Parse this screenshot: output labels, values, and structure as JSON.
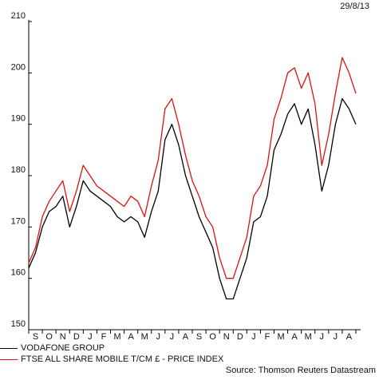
{
  "date_label": "29/8/13",
  "source": "Source: Thomson Reuters Datastream",
  "chart_data": {
    "type": "line",
    "ylim": [
      150,
      210
    ],
    "yticks": [
      150,
      160,
      170,
      180,
      190,
      200,
      210
    ],
    "month_labels": [
      "S",
      "O",
      "N",
      "D",
      "J",
      "F",
      "M",
      "A",
      "M",
      "J",
      "J",
      "A",
      "S",
      "O",
      "N",
      "D",
      "J",
      "F",
      "M",
      "A",
      "M",
      "J",
      "J",
      "A"
    ],
    "series": [
      {
        "name": "VODAFONE GROUP",
        "color": "#000000",
        "x": [
          0,
          0.5,
          1,
          1.5,
          2,
          2.5,
          3,
          3.5,
          4,
          4.5,
          5,
          5.5,
          6,
          6.5,
          7,
          7.5,
          8,
          8.5,
          9,
          9.5,
          10,
          10.5,
          11,
          11.5,
          12,
          12.5,
          13,
          13.5,
          14,
          14.5,
          15,
          15.5,
          16,
          16.5,
          17,
          17.5,
          18,
          18.5,
          19,
          19.5,
          20,
          20.5,
          21,
          21.5,
          22,
          22.5,
          23,
          23.5,
          24
        ],
        "values": [
          162,
          165,
          170,
          173,
          174,
          176,
          170,
          174,
          179,
          177,
          176,
          175,
          174,
          172,
          171,
          172,
          171,
          168,
          173,
          177,
          187,
          190,
          186,
          180,
          176,
          172,
          169,
          166,
          160,
          156,
          156,
          160,
          164,
          171,
          172,
          176,
          185,
          188,
          192,
          194,
          190,
          193,
          186,
          177,
          182,
          190,
          195,
          193,
          190
        ]
      },
      {
        "name": "FTSE ALL SHARE MOBILE T/CM £ - PRICE INDEX",
        "color": "#dd1111",
        "x": [
          0,
          0.5,
          1,
          1.5,
          2,
          2.5,
          3,
          3.5,
          4,
          4.5,
          5,
          5.5,
          6,
          6.5,
          7,
          7.5,
          8,
          8.5,
          9,
          9.5,
          10,
          10.5,
          11,
          11.5,
          12,
          12.5,
          13,
          13.5,
          14,
          14.5,
          15,
          15.5,
          16,
          16.5,
          17,
          17.5,
          18,
          18.5,
          19,
          19.5,
          20,
          20.5,
          21,
          21.5,
          22,
          22.5,
          23,
          23.5,
          24
        ],
        "values": [
          163,
          166,
          172,
          175,
          177,
          179,
          173,
          177,
          182,
          180,
          178,
          177,
          176,
          175,
          174,
          176,
          175,
          172,
          178,
          183,
          193,
          195,
          190,
          184,
          179,
          176,
          172,
          170,
          164,
          160,
          160,
          164,
          168,
          176,
          178,
          182,
          191,
          195,
          200,
          201,
          197,
          200,
          194,
          182,
          188,
          196,
          203,
          200,
          196
        ]
      }
    ]
  }
}
